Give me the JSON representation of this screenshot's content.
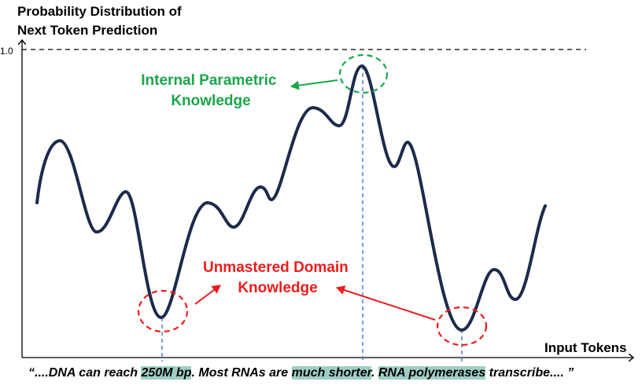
{
  "y_axis_title_lines": [
    "Probability Distribution of",
    "Next Token Prediction"
  ],
  "x_axis_title": "Input Tokens",
  "y_tick": "1.0",
  "annotation_green_lines": [
    "Internal Parametric",
    "Knowledge"
  ],
  "annotation_red_lines": [
    "Unmastered Domain",
    "Knowledge"
  ],
  "caption": {
    "prefix": "“....DNA can reach ",
    "hl1": "250M bp",
    "mid1": ". Most RNAs are ",
    "hl2": "much shorter",
    "mid2": ". ",
    "hl3": "RNA polymerases",
    "suffix": " transcribe.... ”"
  },
  "colors": {
    "curve": "#1c2b4a",
    "axis": "#000000",
    "guide_dashed": "#3e7bc4",
    "green": "#1aa64a",
    "red": "#ee1c1c",
    "highlight": "#9fcfc4"
  }
}
